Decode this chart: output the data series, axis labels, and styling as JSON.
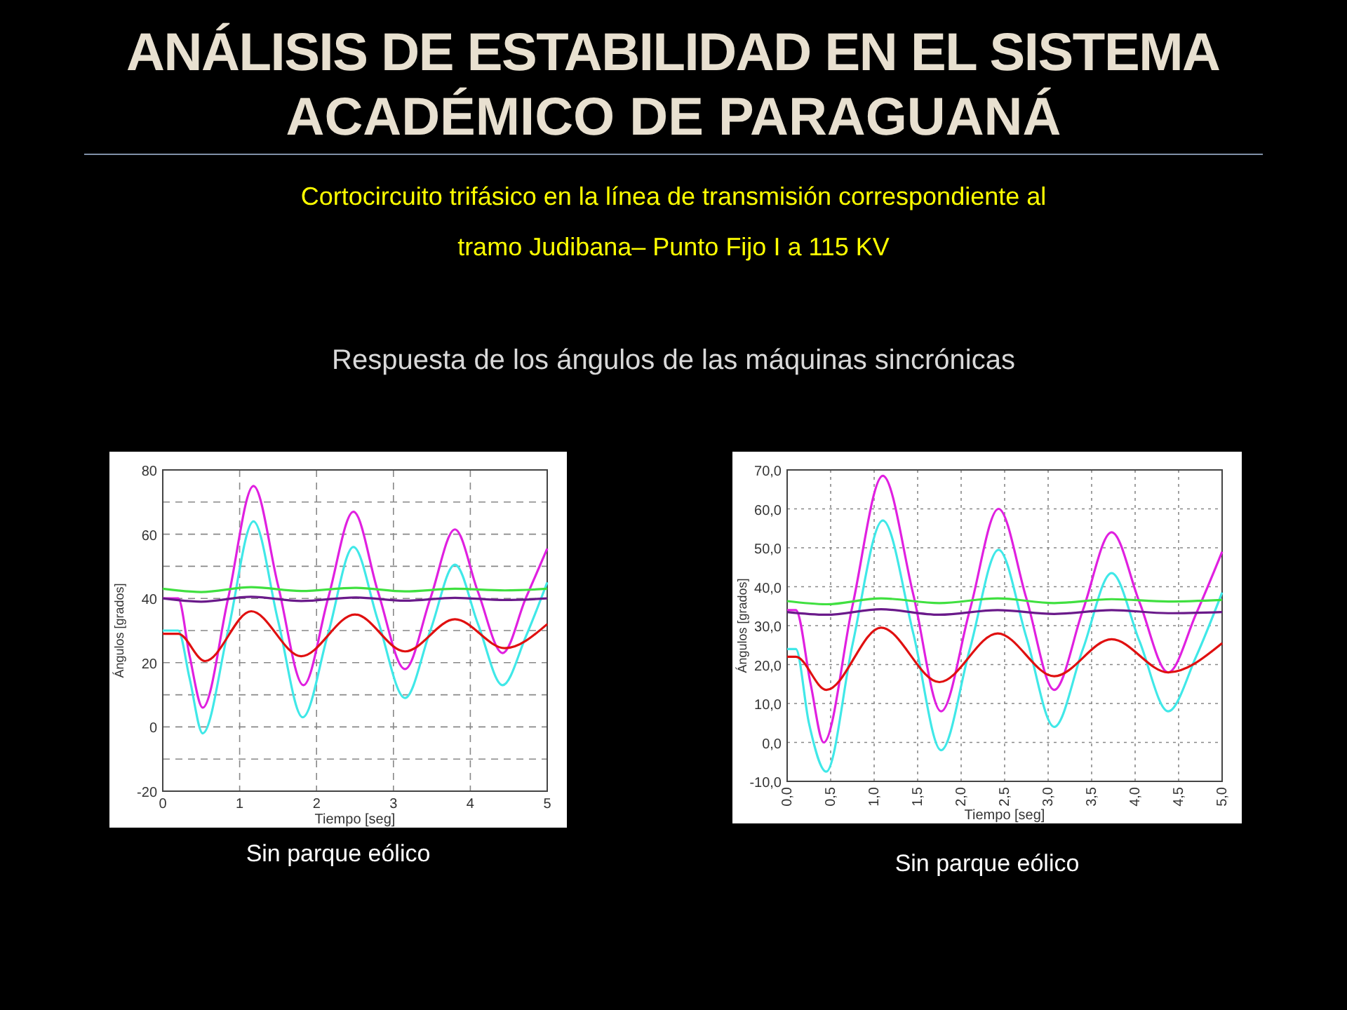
{
  "chart_data": [
    {
      "type": "line",
      "title": "ANÁLISIS DE ESTABILIDAD EN EL SISTEMA ACADÉMICO DE PARAGUANÁ",
      "subtitle": "Cortocircuito trifásico en la línea de transmisión correspondiente al tramo Judibana– Punto Fijo I a 115 KV",
      "annotations": [
        "Respuesta de los ángulos de las máquinas sincrónicas",
        "Sin parque eólico"
      ],
      "xlabel": "Tiempo [seg]",
      "ylabel": "Ángulos [grados]",
      "xlim": [
        0,
        5
      ],
      "ylim": [
        -20,
        80
      ],
      "xticks": [
        0,
        1,
        2,
        3,
        4,
        5
      ],
      "yticks": [
        -20,
        {
          "value": -10,
          "label": null
        },
        0,
        {
          "value": 10,
          "label": null
        },
        20,
        {
          "value": 30,
          "label": null
        },
        40,
        {
          "value": 50,
          "label": null
        },
        60,
        {
          "value": 70,
          "label": null
        },
        80
      ],
      "grid": true,
      "line_style": "solid",
      "series": [
        {
          "color": "#e020e0",
          "x": [
            0,
            0.2,
            0.35,
            0.52,
            0.85,
            1.18,
            1.5,
            1.83,
            2.15,
            2.48,
            2.8,
            3.15,
            3.48,
            3.8,
            4.1,
            4.42,
            4.72,
            5
          ],
          "values": [
            40,
            40,
            22,
            6,
            40,
            75,
            44,
            13,
            40,
            67,
            42,
            18,
            40,
            61.5,
            42,
            23,
            40,
            55.5
          ]
        },
        {
          "color": "#40e8e8",
          "x": [
            0,
            0.2,
            0.35,
            0.52,
            0.85,
            1.18,
            1.5,
            1.82,
            2.15,
            2.48,
            2.8,
            3.15,
            3.48,
            3.8,
            4.1,
            4.42,
            4.72,
            5
          ],
          "values": [
            30,
            30,
            15,
            -2,
            30,
            64,
            33,
            3,
            29,
            56,
            33,
            9,
            30,
            50.5,
            32,
            13,
            28,
            45
          ]
        },
        {
          "color": "#e01010",
          "x": [
            0,
            0.2,
            0.55,
            1.15,
            1.8,
            2.5,
            3.15,
            3.8,
            4.45,
            5
          ],
          "values": [
            29,
            29,
            20.5,
            36,
            22,
            35,
            23.5,
            33.5,
            24.5,
            32
          ]
        },
        {
          "color": "#40e040",
          "x": [
            0,
            0.5,
            1.15,
            1.8,
            2.5,
            3.15,
            3.8,
            4.45,
            5
          ],
          "values": [
            43,
            42,
            43.5,
            42.3,
            43.3,
            42.2,
            43,
            42.5,
            43
          ]
        },
        {
          "color": "#6a1a8a",
          "x": [
            0,
            0.5,
            1.15,
            1.8,
            2.5,
            3.15,
            3.8,
            4.45,
            5
          ],
          "values": [
            40,
            39,
            40.5,
            39.2,
            40.3,
            39.3,
            40.2,
            39.5,
            40
          ]
        }
      ]
    },
    {
      "type": "line",
      "annotations": [
        "Sin parque eólico"
      ],
      "xlabel": "Tiempo [seg]",
      "ylabel": "Ángulos [grados]",
      "xlim": [
        0,
        5
      ],
      "ylim": [
        -10,
        70
      ],
      "xticks": [
        {
          "value": 0,
          "label": "0,0"
        },
        {
          "value": 0.5,
          "label": "0,5"
        },
        {
          "value": 1,
          "label": "1,0"
        },
        {
          "value": 1.5,
          "label": "1,5"
        },
        {
          "value": 2,
          "label": "2,0"
        },
        {
          "value": 2.5,
          "label": "2,5"
        },
        {
          "value": 3,
          "label": "3,0"
        },
        {
          "value": 3.5,
          "label": "3,5"
        },
        {
          "value": 4,
          "label": "4,0"
        },
        {
          "value": 4.5,
          "label": "4,5"
        },
        {
          "value": 5,
          "label": "5,0"
        }
      ],
      "yticks": [
        {
          "value": -10,
          "label": "-10,0"
        },
        {
          "value": 0,
          "label": "0,0"
        },
        {
          "value": 10,
          "label": "10,0"
        },
        {
          "value": 20,
          "label": "20,0"
        },
        {
          "value": 30,
          "label": "30,0"
        },
        {
          "value": 40,
          "label": "40,0"
        },
        {
          "value": 50,
          "label": "50,0"
        },
        {
          "value": 60,
          "label": "60,0"
        },
        {
          "value": 70,
          "label": "70,0"
        }
      ],
      "grid": true,
      "line_style": "solid",
      "series": [
        {
          "color": "#e020e0",
          "x": [
            0,
            0.1,
            0.27,
            0.42,
            0.75,
            1.1,
            1.45,
            1.77,
            2.1,
            2.43,
            2.75,
            3.07,
            3.4,
            3.73,
            4.05,
            4.38,
            4.7,
            5
          ],
          "values": [
            34,
            34,
            15,
            0,
            35,
            68.5,
            38,
            8,
            34,
            60,
            37,
            13.5,
            34,
            54,
            36,
            18,
            33,
            49
          ]
        },
        {
          "color": "#40e8e8",
          "x": [
            0,
            0.1,
            0.25,
            0.45,
            0.75,
            1.1,
            1.45,
            1.77,
            2.1,
            2.43,
            2.75,
            3.07,
            3.4,
            3.73,
            4.05,
            4.38,
            4.7,
            5
          ],
          "values": [
            24,
            24,
            5,
            -7.5,
            25,
            57,
            28,
            -2,
            24,
            49.5,
            27,
            4,
            24,
            43.5,
            26,
            8,
            22,
            38.5
          ]
        },
        {
          "color": "#e01010",
          "x": [
            0,
            0.1,
            0.45,
            1.08,
            1.75,
            2.42,
            3.07,
            3.73,
            4.38,
            5
          ],
          "values": [
            22,
            22,
            13.5,
            29.5,
            15.5,
            28,
            17,
            26.5,
            18,
            25.5
          ]
        },
        {
          "color": "#40e040",
          "x": [
            0,
            0.45,
            1.08,
            1.75,
            2.42,
            3.07,
            3.73,
            4.38,
            5
          ],
          "values": [
            36.3,
            35.5,
            37,
            35.8,
            37,
            35.8,
            36.8,
            36.2,
            36.6
          ]
        },
        {
          "color": "#6a1a8a",
          "x": [
            0,
            0.45,
            1.08,
            1.75,
            2.42,
            3.07,
            3.73,
            4.38,
            5
          ],
          "values": [
            33.5,
            32.8,
            34.2,
            32.8,
            34,
            33,
            34,
            33.2,
            33.5
          ]
        }
      ]
    }
  ]
}
